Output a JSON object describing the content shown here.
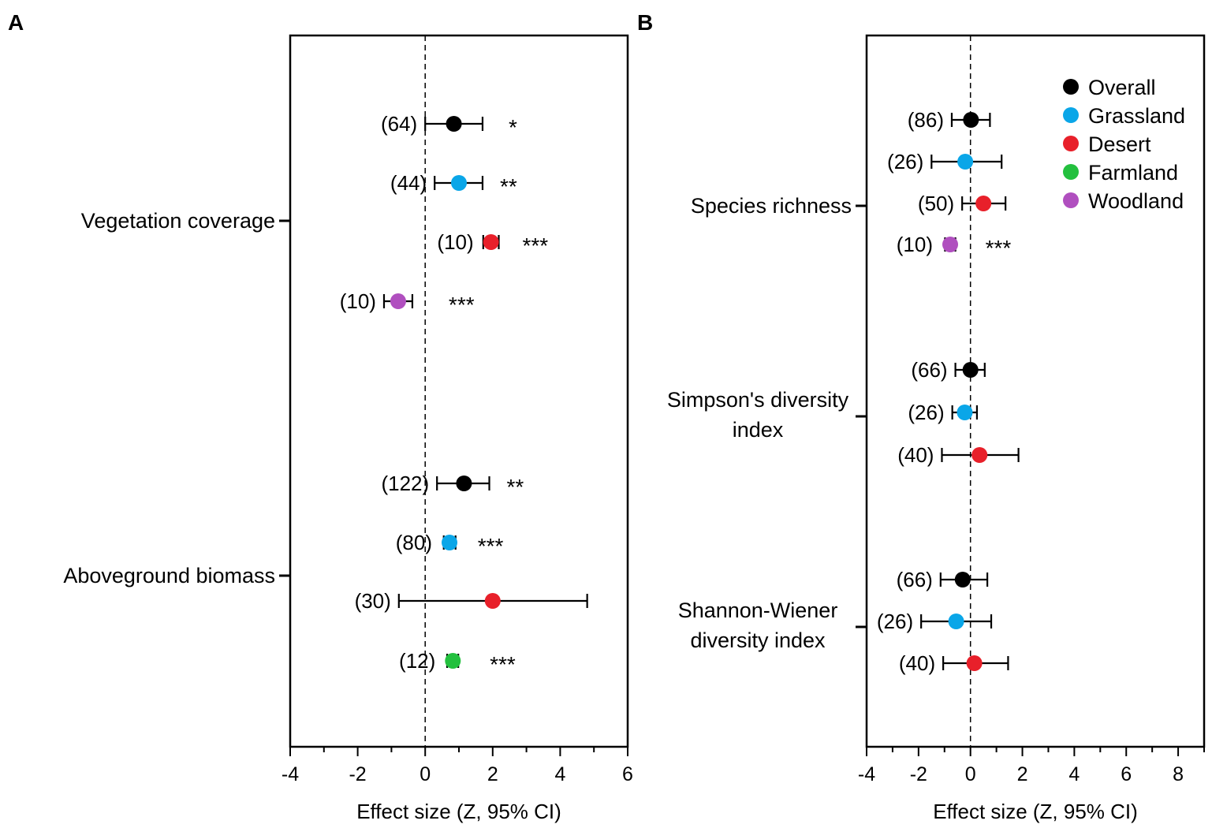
{
  "colors": {
    "Overall": "#000000",
    "Grassland": "#0aa6e8",
    "Desert": "#e8202a",
    "Farmland": "#23c03e",
    "Woodland": "#b04fbf"
  },
  "chart_data": [
    {
      "type": "forest",
      "panel_label": "A",
      "xlabel": "Effect size (Z, 95% CI)",
      "xlim": [
        -4,
        6
      ],
      "xticks": [
        "-4",
        "-2",
        "0",
        "2",
        "4",
        "6"
      ],
      "groups": [
        {
          "label": "Vegetation coverage",
          "rows": [
            {
              "series": "Overall",
              "n": "(64)",
              "estimate": 0.85,
              "lower": 0.0,
              "upper": 1.7,
              "sig": "*"
            },
            {
              "series": "Grassland",
              "n": "(44)",
              "estimate": 1.0,
              "lower": 0.28,
              "upper": 1.7,
              "sig": "**"
            },
            {
              "series": "Desert",
              "n": "(10)",
              "estimate": 1.95,
              "lower": 1.72,
              "upper": 2.18,
              "sig": "***"
            },
            {
              "series": "Woodland",
              "n": "(10)",
              "estimate": -0.8,
              "lower": -1.22,
              "upper": -0.38,
              "sig": "***"
            }
          ]
        },
        {
          "label": "Aboveground biomass",
          "rows": [
            {
              "series": "Overall",
              "n": "(122)",
              "estimate": 1.15,
              "lower": 0.35,
              "upper": 1.9,
              "sig": "**"
            },
            {
              "series": "Grassland",
              "n": "(80)",
              "estimate": 0.72,
              "lower": 0.55,
              "upper": 0.9,
              "sig": "***"
            },
            {
              "series": "Desert",
              "n": "(30)",
              "estimate": 2.0,
              "lower": -0.78,
              "upper": 4.8,
              "sig": ""
            },
            {
              "series": "Farmland",
              "n": "(12)",
              "estimate": 0.82,
              "lower": 0.65,
              "upper": 0.98,
              "sig": "***"
            }
          ]
        }
      ]
    },
    {
      "type": "forest",
      "panel_label": "B",
      "xlabel": "Effect size (Z, 95% CI)",
      "xlim": [
        -4,
        9
      ],
      "xticks": [
        "-4",
        "-2",
        "0",
        "2",
        "4",
        "6",
        "8"
      ],
      "legend": {
        "position": "top-right",
        "entries": [
          "Overall",
          "Grassland",
          "Desert",
          "Farmland",
          "Woodland"
        ]
      },
      "groups": [
        {
          "label": "Species richness",
          "rows": [
            {
              "series": "Overall",
              "n": "(86)",
              "estimate": 0.02,
              "lower": -0.72,
              "upper": 0.75,
              "sig": ""
            },
            {
              "series": "Grassland",
              "n": "(26)",
              "estimate": -0.2,
              "lower": -1.5,
              "upper": 1.2,
              "sig": ""
            },
            {
              "series": "Desert",
              "n": "(50)",
              "estimate": 0.5,
              "lower": -0.32,
              "upper": 1.35,
              "sig": ""
            },
            {
              "series": "Woodland",
              "n": "(10)",
              "estimate": -0.78,
              "lower": -0.98,
              "upper": -0.58,
              "sig": "***"
            }
          ]
        },
        {
          "label": "Simpson's diversity index",
          "label_lines": [
            "Simpson's diversity",
            "index"
          ],
          "rows": [
            {
              "series": "Overall",
              "n": "(66)",
              "estimate": 0.0,
              "lower": -0.58,
              "upper": 0.55,
              "sig": ""
            },
            {
              "series": "Grassland",
              "n": "(26)",
              "estimate": -0.22,
              "lower": -0.7,
              "upper": 0.25,
              "sig": ""
            },
            {
              "series": "Desert",
              "n": "(40)",
              "estimate": 0.35,
              "lower": -1.1,
              "upper": 1.85,
              "sig": ""
            }
          ]
        },
        {
          "label": "Shannon-Wiener diversity index",
          "label_lines": [
            "Shannon-Wiener",
            "diversity index"
          ],
          "rows": [
            {
              "series": "Overall",
              "n": "(66)",
              "estimate": -0.3,
              "lower": -1.15,
              "upper": 0.65,
              "sig": ""
            },
            {
              "series": "Grassland",
              "n": "(26)",
              "estimate": -0.55,
              "lower": -1.9,
              "upper": 0.8,
              "sig": ""
            },
            {
              "series": "Desert",
              "n": "(40)",
              "estimate": 0.15,
              "lower": -1.05,
              "upper": 1.45,
              "sig": ""
            }
          ]
        }
      ]
    }
  ]
}
